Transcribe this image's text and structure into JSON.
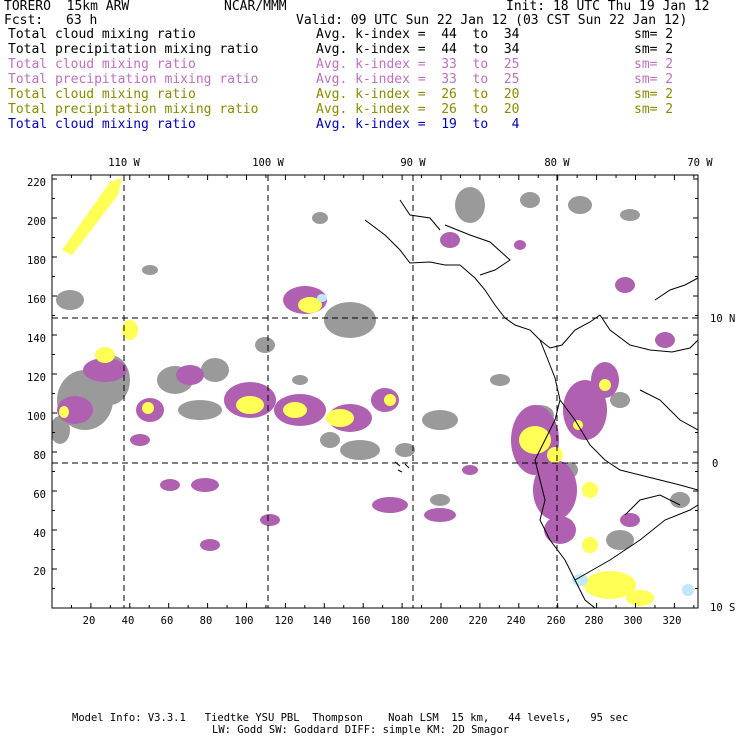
{
  "header": {
    "model": "TORERO  15km ARW",
    "org": "NCAR/MMM",
    "init": "Init: 18 UTC Thu 19 Jan 12",
    "fcst_label": "Fcst:",
    "fcst_value": "63 h",
    "valid": "Valid: 09 UTC Sun 22 Jan 12 (03 CST Sun 22 Jan 12)"
  },
  "legend": [
    {
      "field": "Total cloud mixing ratio",
      "stat": "Avg. k-index =  44  to  34",
      "sm": "sm= 2",
      "color": "#000000"
    },
    {
      "field": "Total precipitation mixing ratio",
      "stat": "Avg. k-index =  44  to  34",
      "sm": "sm= 2",
      "color": "#000000"
    },
    {
      "field": "Total cloud mixing ratio",
      "stat": "Avg. k-index =  33  to  25",
      "sm": "sm= 2",
      "color": "#c070c0"
    },
    {
      "field": "Total precipitation mixing ratio",
      "stat": "Avg. k-index =  33  to  25",
      "sm": "sm= 2",
      "color": "#c070c0"
    },
    {
      "field": "Total cloud mixing ratio",
      "stat": "Avg. k-index =  26  to  20",
      "sm": "sm= 2",
      "color": "#8a8a00"
    },
    {
      "field": "Total precipitation mixing ratio",
      "stat": "Avg. k-index =  26  to  20",
      "sm": "sm= 2",
      "color": "#8a8a00"
    },
    {
      "field": "Total cloud mixing ratio",
      "stat": "Avg. k-index =  19  to   4",
      "sm": "",
      "color": "#0000c0"
    }
  ],
  "map": {
    "lon_labels": [
      "110 W",
      "100 W",
      "90 W",
      "80 W",
      "70 W"
    ],
    "lat_labels": [
      "10 N",
      "0",
      "10 S"
    ],
    "x_ticks": [
      "20",
      "40",
      "60",
      "80",
      "100",
      "120",
      "140",
      "160",
      "180",
      "200",
      "220",
      "240",
      "260",
      "280",
      "300",
      "320"
    ],
    "y_ticks": [
      "20",
      "40",
      "60",
      "80",
      "100",
      "120",
      "140",
      "160",
      "180",
      "200",
      "220"
    ],
    "colors": {
      "gray_cloud": "#9a9a9a",
      "purple_cloud": "#b060b0",
      "yellow_cloud": "#ffff55",
      "lightblue": "#c0e8f8"
    }
  },
  "footer": {
    "line1": "Model Info: V3.3.1   Tiedtke YSU PBL  Thompson    Noah LSM  15 km,   44 levels,   95 sec",
    "line2": "LW: Godd SW: Goddard DIFF: simple KM: 2D Smagor"
  }
}
